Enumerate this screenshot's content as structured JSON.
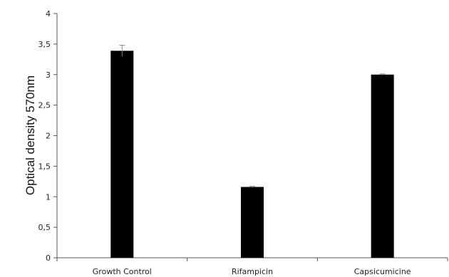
{
  "chart_data": {
    "type": "bar",
    "title": "",
    "xlabel": "",
    "ylabel": "Optical density 570nm",
    "categories": [
      "Growth Control",
      "Rifampicin",
      "Capsicumicine"
    ],
    "values": [
      3.39,
      1.16,
      3.0
    ],
    "errors": [
      0.09,
      0.01,
      0.01
    ],
    "ylim": [
      0,
      4
    ],
    "yticks": [
      0,
      0.5,
      1,
      1.5,
      2,
      2.5,
      3,
      3.5,
      4
    ],
    "ytick_labels": [
      "0",
      "0,5",
      "1",
      "1,5",
      "2",
      "2,5",
      "3",
      "3,5",
      "4"
    ],
    "grid": false,
    "bar_color": "#000000",
    "error_bar_color": "#888888"
  }
}
